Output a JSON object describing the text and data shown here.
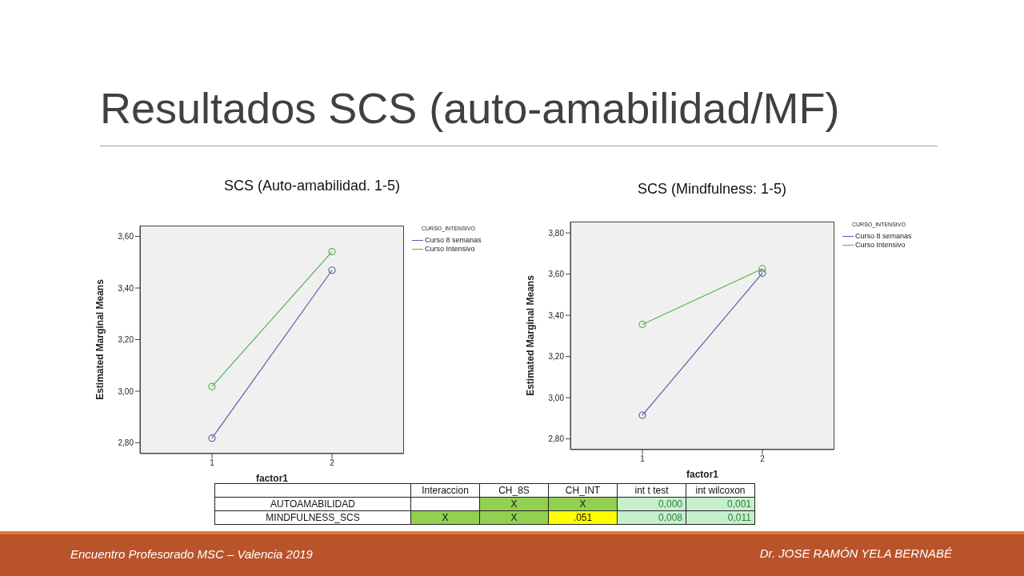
{
  "chart_data": [
    {
      "type": "line",
      "title": "SCS (Auto-amabilidad. 1-5)",
      "xlabel": "factor1",
      "ylabel": "Estimated Marginal Means",
      "legend_title": "CURSO_INTENSIVO",
      "legend": "top right",
      "marker": "circle",
      "categories": [
        "1",
        "2"
      ],
      "ylim": [
        2.758,
        3.642
      ],
      "yticks": [
        {
          "value": 2.8,
          "label": "2,80"
        },
        {
          "value": 3.0,
          "label": "3,00"
        },
        {
          "value": 3.2,
          "label": "3,20"
        },
        {
          "value": 3.4,
          "label": "3,40"
        },
        {
          "value": 3.6,
          "label": "3,60"
        }
      ],
      "series": [
        {
          "name": "Curso 8 semanas",
          "color": "#5a5ea8",
          "values": [
            2.818,
            3.469
          ]
        },
        {
          "name": "Curso Intensivo",
          "color": "#52b44c",
          "values": [
            3.018,
            3.541
          ]
        }
      ]
    },
    {
      "type": "line",
      "title": "SCS (Mindfulness: 1-5)",
      "xlabel": "factor1",
      "ylabel": "Estimated Marginal Means",
      "legend_title": "CURSO_INTENSIVO",
      "legend": "top right",
      "marker": "circle",
      "categories": [
        "1",
        "2"
      ],
      "ylim": [
        2.748,
        3.855
      ],
      "yticks": [
        {
          "value": 2.8,
          "label": "2,80"
        },
        {
          "value": 3.0,
          "label": "3,00"
        },
        {
          "value": 3.2,
          "label": "3,20"
        },
        {
          "value": 3.4,
          "label": "3,40"
        },
        {
          "value": 3.6,
          "label": "3,60"
        },
        {
          "value": 3.8,
          "label": "3,80"
        }
      ],
      "series": [
        {
          "name": "Curso 8 semanas",
          "color": "#5a5ea8",
          "values": [
            2.915,
            3.605
          ]
        },
        {
          "name": "Curso Intensivo",
          "color": "#52b44c",
          "values": [
            3.356,
            3.626
          ]
        }
      ]
    },
    {
      "type": "other",
      "categories": [
        "Interaccion",
        "CH_8S",
        "CH_INT",
        "int t test",
        "int wilcoxon"
      ],
      "y_categories": [
        "AUTOAMABILIDAD",
        "MINDFULNESS_SCS"
      ],
      "cell_labels": [
        [
          null,
          "X",
          "X",
          "0,000",
          "0,001"
        ],
        [
          "X",
          "X",
          ".051",
          "0,008",
          "0,011"
        ]
      ],
      "colors": [
        [
          null,
          "#92d050",
          "#92d050",
          "#c6efce",
          "#c6efce"
        ],
        [
          "#92d050",
          "#92d050",
          "#ffff00",
          "#c6efce",
          "#c6efce"
        ]
      ],
      "annotations": [
        "Resultados SCS (auto-amabilidad/MF)",
        "Encuentro Profesorado MSC – Valencia 2019",
        "Dr. JOSE RAMÓN YELA BERNABÉ"
      ]
    }
  ]
}
